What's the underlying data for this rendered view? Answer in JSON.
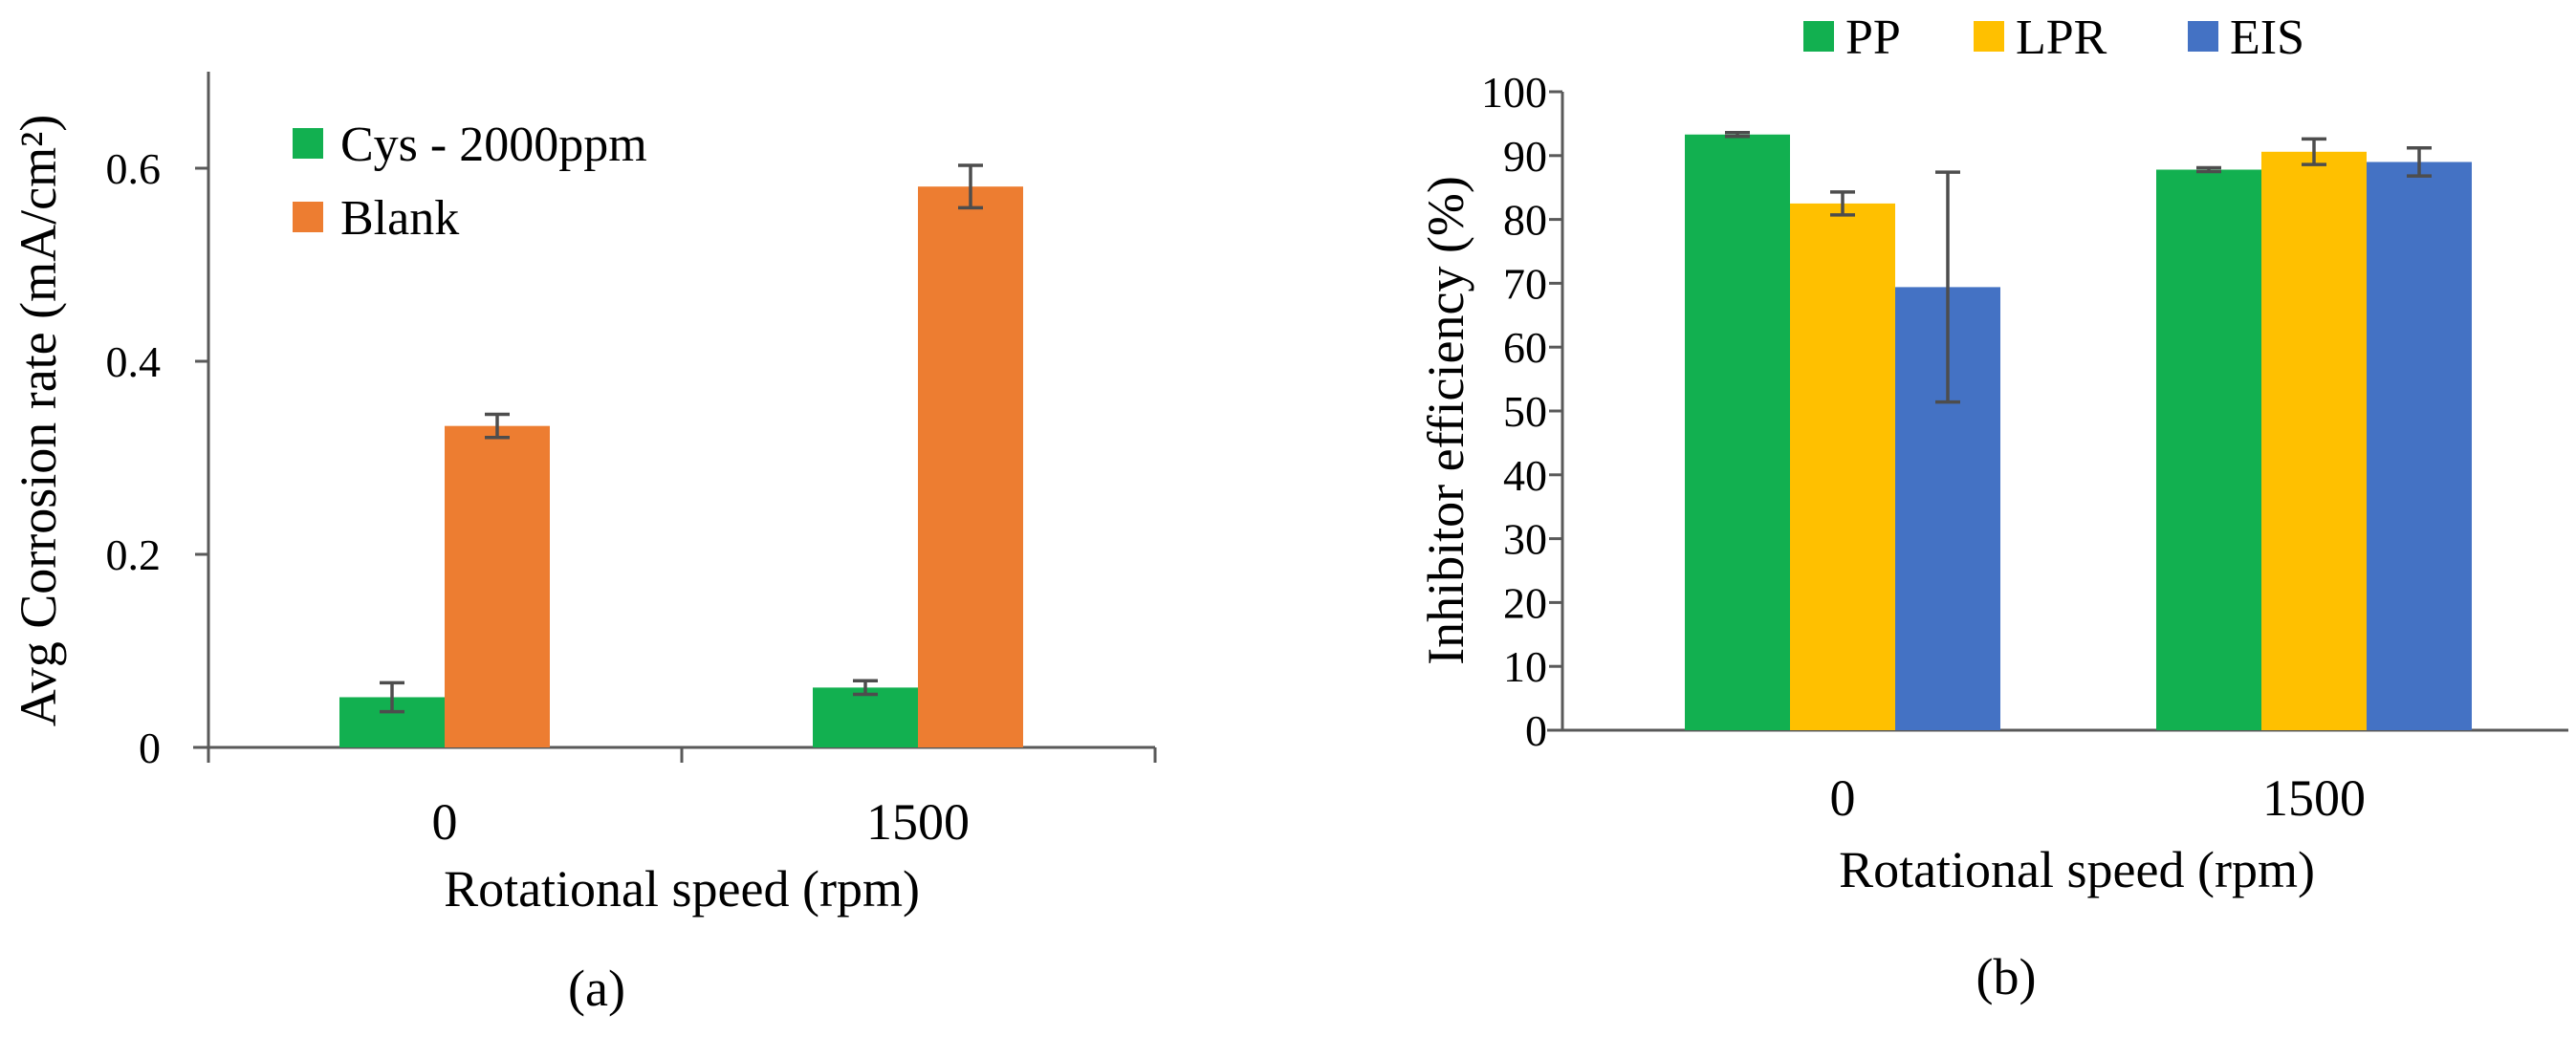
{
  "colors": {
    "green": "#12B050",
    "orange": "#ED7D31",
    "yellow": "#FFC000",
    "blue": "#4472C4",
    "axis": "#595959",
    "errorbar": "#4D4D4D"
  },
  "chart_data": [
    {
      "type": "bar",
      "panel": "(a)",
      "title": "",
      "xlabel": "Rotational speed (rpm)",
      "ylabel": "Avg Corrosion rate (mA/cm²)",
      "categories": [
        "0",
        "1500"
      ],
      "ylim": [
        0,
        0.7
      ],
      "yticks": [
        0,
        0.2,
        0.4,
        0.6
      ],
      "ytick_labels": [
        "0",
        "0.2",
        "0.4",
        "0.6"
      ],
      "grid": false,
      "legend_position": "top-left inside",
      "series": [
        {
          "name": "Cys - 2000ppm",
          "color": "#12B050",
          "values": [
            0.052,
            0.062
          ],
          "errors": [
            0.015,
            0.007
          ]
        },
        {
          "name": "Blank",
          "color": "#ED7D31",
          "values": [
            0.333,
            0.581
          ],
          "errors": [
            0.012,
            0.022
          ]
        }
      ]
    },
    {
      "type": "bar",
      "panel": "(b)",
      "title": "",
      "xlabel": "Rotational speed (rpm)",
      "ylabel": "Inhibitor efficiency  (%)",
      "categories": [
        "0",
        "1500"
      ],
      "ylim": [
        0,
        100
      ],
      "yticks": [
        0,
        10,
        20,
        30,
        40,
        50,
        60,
        70,
        80,
        90,
        100
      ],
      "ytick_labels": [
        "0",
        "10",
        "20",
        "30",
        "40",
        "50",
        "60",
        "70",
        "80",
        "90",
        "100"
      ],
      "grid": false,
      "legend_position": "top",
      "series": [
        {
          "name": "PP",
          "color": "#12B050",
          "values": [
            93.3,
            87.8
          ],
          "errors": [
            0.3,
            0.3
          ]
        },
        {
          "name": "LPR",
          "color": "#FFC000",
          "values": [
            82.5,
            90.6
          ],
          "errors": [
            1.8,
            2.0
          ]
        },
        {
          "name": "EIS",
          "color": "#4472C4",
          "values": [
            69.4,
            89.0
          ],
          "errors": [
            18.0,
            2.2
          ]
        }
      ]
    }
  ]
}
